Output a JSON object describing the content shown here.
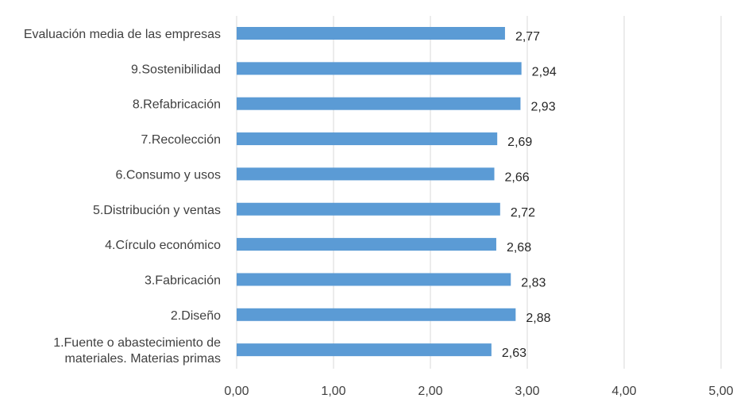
{
  "chart_data": {
    "type": "bar",
    "orientation": "horizontal",
    "categories": [
      "Evaluación media de las empresas",
      "9.Sostenibilidad",
      "8.Refabricación",
      "7.Recolección",
      "6.Consumo y usos",
      "5.Distribución y ventas",
      "4.Círculo económico",
      "3.Fabricación",
      "2.Diseño",
      "1.Fuente o abastecimiento de materiales. Materias primas"
    ],
    "category_lines": [
      [
        "Evaluación media de las empresas"
      ],
      [
        "9.Sostenibilidad"
      ],
      [
        "8.Refabricación"
      ],
      [
        "7.Recolección"
      ],
      [
        "6.Consumo y usos"
      ],
      [
        "5.Distribución y ventas"
      ],
      [
        "4.Círculo económico"
      ],
      [
        "3.Fabricación"
      ],
      [
        "2.Diseño"
      ],
      [
        "1.Fuente o abastecimiento de",
        "materiales. Materias primas"
      ]
    ],
    "values": [
      2.77,
      2.94,
      2.93,
      2.69,
      2.66,
      2.72,
      2.68,
      2.83,
      2.88,
      2.63
    ],
    "data_labels": [
      "2,77",
      "2,94",
      "2,93",
      "2,69",
      "2,66",
      "2,72",
      "2,68",
      "2,83",
      "2,88",
      "2,63"
    ],
    "xlim": [
      0,
      5
    ],
    "x_ticks": [
      0,
      1,
      2,
      3,
      4,
      5
    ],
    "x_tick_labels": [
      "0,00",
      "1,00",
      "2,00",
      "3,00",
      "4,00",
      "5,00"
    ],
    "title": "",
    "xlabel": "",
    "ylabel": "",
    "grid": true,
    "legend": "none",
    "colors": {
      "bar": "#5b9bd5",
      "grid": "#d9d9d9",
      "text": "#404040"
    }
  }
}
